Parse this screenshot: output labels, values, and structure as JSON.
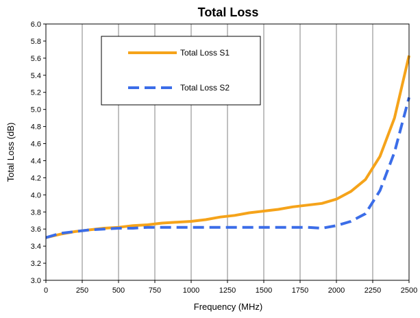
{
  "chart_data": {
    "type": "line",
    "title": "Total Loss",
    "xlabel": "Frequency (MHz)",
    "ylabel": "Total Loss (dB)",
    "xlim": [
      0,
      2500
    ],
    "ylim": [
      3.0,
      6.0
    ],
    "xticks": [
      0,
      250,
      500,
      750,
      1000,
      1250,
      1500,
      1750,
      2000,
      2250,
      2500
    ],
    "yticks": [
      "3.0",
      "3.2",
      "3.4",
      "3.6",
      "3.8",
      "4.0",
      "4.2",
      "4.4",
      "4.6",
      "4.8",
      "5.0",
      "5.2",
      "5.4",
      "5.6",
      "5.8",
      "6.0"
    ],
    "grid": "vertical",
    "legend_position": "top-left",
    "series": [
      {
        "name": "Total Loss S1",
        "color": "#f5a31a",
        "style": "solid",
        "x": [
          0,
          100,
          200,
          300,
          400,
          500,
          600,
          700,
          800,
          900,
          1000,
          1100,
          1200,
          1300,
          1400,
          1500,
          1600,
          1700,
          1800,
          1900,
          2000,
          2100,
          2200,
          2300,
          2400,
          2500
        ],
        "y": [
          3.5,
          3.54,
          3.57,
          3.59,
          3.61,
          3.62,
          3.64,
          3.65,
          3.67,
          3.68,
          3.69,
          3.71,
          3.74,
          3.76,
          3.79,
          3.81,
          3.83,
          3.86,
          3.88,
          3.9,
          3.95,
          4.04,
          4.18,
          4.45,
          4.9,
          5.63
        ]
      },
      {
        "name": "Total Loss S2",
        "color": "#3b6de8",
        "style": "dashed",
        "x": [
          0,
          100,
          200,
          300,
          400,
          500,
          600,
          700,
          800,
          900,
          1000,
          1100,
          1200,
          1300,
          1400,
          1500,
          1600,
          1700,
          1800,
          1900,
          2000,
          2100,
          2200,
          2300,
          2400,
          2500
        ],
        "y": [
          3.5,
          3.55,
          3.57,
          3.59,
          3.6,
          3.61,
          3.61,
          3.62,
          3.62,
          3.62,
          3.62,
          3.62,
          3.62,
          3.62,
          3.62,
          3.62,
          3.62,
          3.62,
          3.62,
          3.61,
          3.64,
          3.69,
          3.78,
          4.05,
          4.5,
          5.14
        ]
      }
    ]
  }
}
